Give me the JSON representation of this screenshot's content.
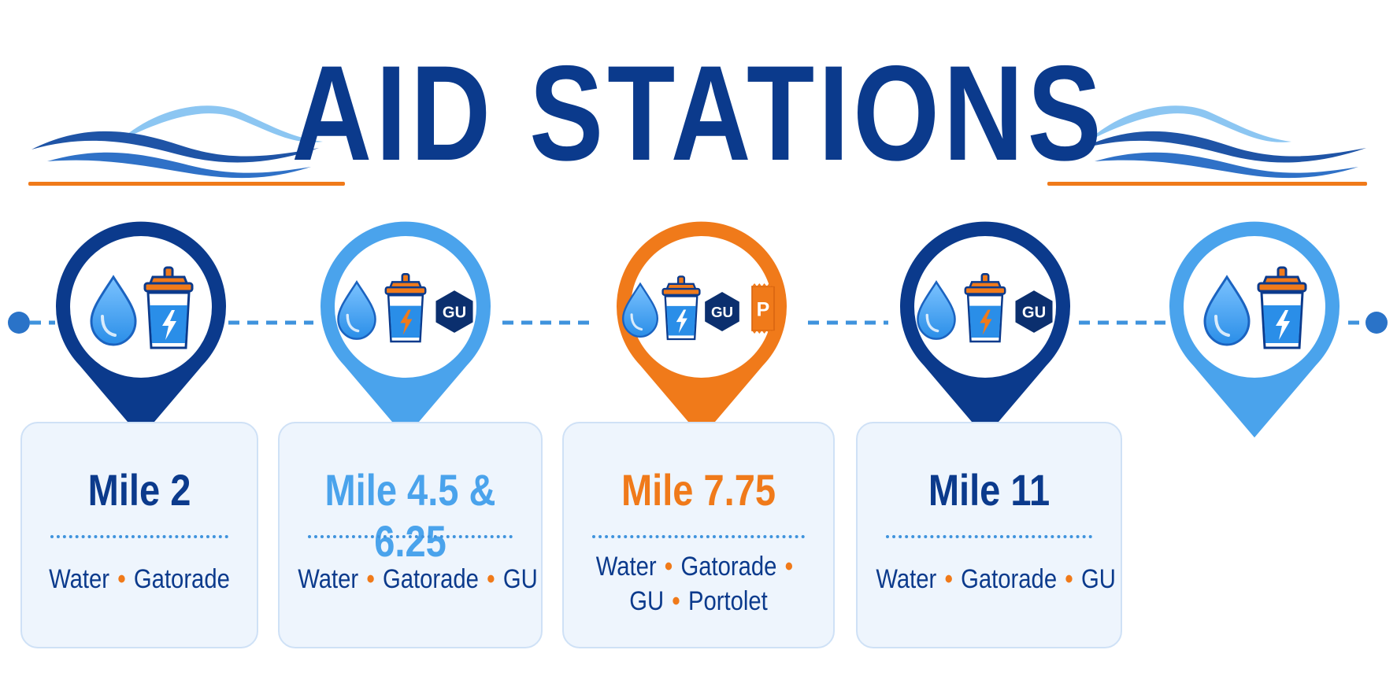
{
  "title": "AID STATIONS",
  "colors": {
    "navy": "#0b3a8c",
    "sky": "#4aa3ec",
    "orange": "#f07a1a",
    "card_bg": "#eef5fd"
  },
  "stations": [
    {
      "mile": "Mile 2",
      "color": "navy",
      "icons": [
        "water-drop-icon",
        "sports-drink-icon"
      ],
      "items": [
        "Water",
        "Gatorade"
      ]
    },
    {
      "mile": "Mile 4.5 & 6.25",
      "color": "sky",
      "icons": [
        "water-drop-icon",
        "sports-drink-icon",
        "gu-gel-icon"
      ],
      "items": [
        "Water",
        "Gatorade",
        "GU"
      ]
    },
    {
      "mile": "Mile 7.75",
      "color": "orange",
      "icons": [
        "water-drop-icon",
        "sports-drink-icon",
        "gu-gel-icon",
        "portolet-icon"
      ],
      "items": [
        "Water",
        "Gatorade",
        "GU",
        "Portolet"
      ]
    },
    {
      "mile": "Mile 11",
      "color": "navy",
      "icons": [
        "water-drop-icon",
        "sports-drink-icon",
        "gu-gel-icon"
      ],
      "items": [
        "Water",
        "Gatorade",
        "GU"
      ]
    },
    {
      "color": "sky",
      "icons": [
        "water-drop-icon",
        "sports-drink-icon"
      ]
    }
  ],
  "icon_text": {
    "gu": "GU",
    "portolet": "P"
  }
}
